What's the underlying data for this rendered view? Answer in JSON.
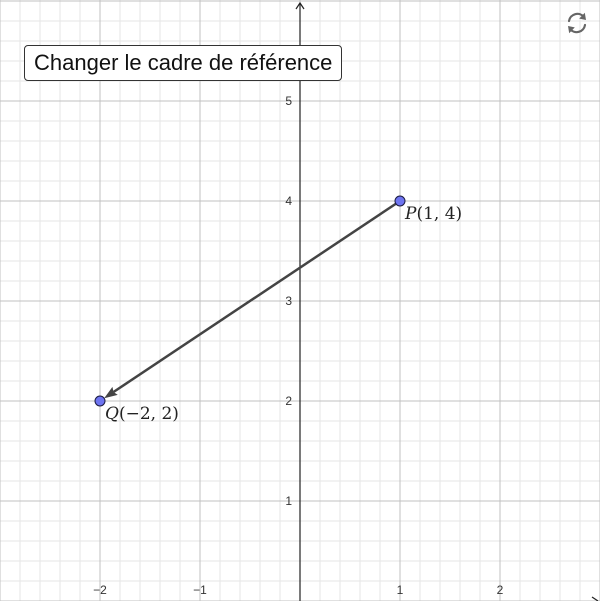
{
  "toolbar": {
    "change_frame_label": "Changer le cadre de référence",
    "reset_icon": "reset-icon"
  },
  "graph": {
    "x_range": [
      -3,
      3
    ],
    "y_range": [
      0,
      6
    ],
    "minor_step": 0.2,
    "major_step": 1,
    "x_ticks": [
      {
        "value": -2,
        "label": "−2"
      },
      {
        "value": -1,
        "label": "−1"
      },
      {
        "value": 1,
        "label": "1"
      },
      {
        "value": 2,
        "label": "2"
      }
    ],
    "y_ticks": [
      {
        "value": 1,
        "label": "1"
      },
      {
        "value": 2,
        "label": "2"
      },
      {
        "value": 3,
        "label": "3"
      },
      {
        "value": 4,
        "label": "4"
      },
      {
        "value": 5,
        "label": "5"
      }
    ],
    "points": [
      {
        "id": "P",
        "x": 1,
        "y": 4,
        "label_name": "P",
        "label_coords": "(1, 4)"
      },
      {
        "id": "Q",
        "x": -2,
        "y": 2,
        "label_name": "Q",
        "label_coords": "(−2, 2)"
      }
    ],
    "vector": {
      "from": "P",
      "to": "Q"
    },
    "colors": {
      "minor_grid": "#e6e6e6",
      "major_grid": "#c0c0c0",
      "axis": "#222222",
      "point_fill": "#6e74f0",
      "point_stroke": "#1a1a40",
      "vector": "#444444",
      "icon": "#666666"
    }
  }
}
